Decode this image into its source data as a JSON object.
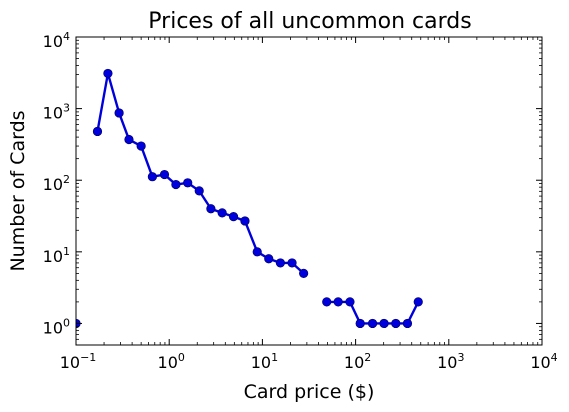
{
  "chart_data": {
    "type": "line",
    "title": "Prices of all uncommon cards",
    "xlabel": "Card price ($)",
    "ylabel": "Number of Cards",
    "xscale": "log",
    "yscale": "log",
    "xlim": [
      0.1,
      10000
    ],
    "ylim": [
      0.5,
      10000
    ],
    "grid": false,
    "legend": "none",
    "x_ticks": [
      {
        "value": 0.1,
        "base": "10",
        "exp": "−1"
      },
      {
        "value": 1,
        "base": "10",
        "exp": "0"
      },
      {
        "value": 10,
        "base": "10",
        "exp": "1"
      },
      {
        "value": 100,
        "base": "10",
        "exp": "2"
      },
      {
        "value": 1000,
        "base": "10",
        "exp": "3"
      },
      {
        "value": 10000,
        "base": "10",
        "exp": "4"
      }
    ],
    "y_ticks": [
      {
        "value": 1,
        "base": "10",
        "exp": "0"
      },
      {
        "value": 10,
        "base": "10",
        "exp": "1"
      },
      {
        "value": 100,
        "base": "10",
        "exp": "2"
      },
      {
        "value": 1000,
        "base": "10",
        "exp": "3"
      },
      {
        "value": 10000,
        "base": "10",
        "exp": "4"
      }
    ],
    "series": [
      {
        "color": "#0000dd",
        "segments": [
          [
            [
              0.1,
              1
            ]
          ],
          [
            [
              0.17,
              480
            ],
            [
              0.22,
              3100
            ],
            [
              0.29,
              870
            ],
            [
              0.37,
              370
            ],
            [
              0.5,
              300
            ],
            [
              0.66,
              112
            ],
            [
              0.89,
              120
            ],
            [
              1.18,
              87
            ],
            [
              1.58,
              92
            ],
            [
              2.1,
              71
            ],
            [
              2.8,
              40
            ],
            [
              3.7,
              35
            ],
            [
              4.9,
              31
            ],
            [
              6.5,
              27
            ],
            [
              8.8,
              10
            ],
            [
              11.7,
              8
            ],
            [
              15.6,
              7
            ],
            [
              20.8,
              7
            ],
            [
              27.7,
              5
            ]
          ],
          [
            [
              49,
              2
            ],
            [
              65,
              2
            ],
            [
              87,
              2
            ],
            [
              112,
              1
            ],
            [
              152,
              1
            ],
            [
              202,
              1
            ],
            [
              270,
              1
            ],
            [
              360,
              1
            ],
            [
              470,
              2
            ]
          ]
        ]
      }
    ]
  }
}
